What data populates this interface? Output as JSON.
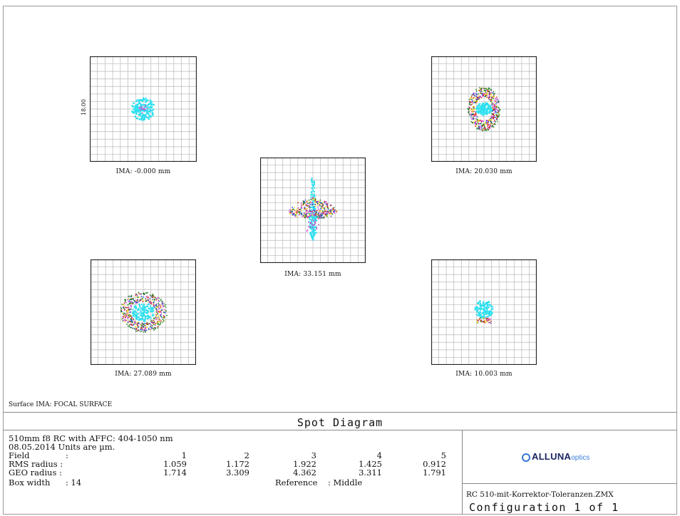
{
  "panels": [
    {
      "ima": "IMA: -0.000 mm",
      "scale_label": "18.00",
      "spot": "center"
    },
    {
      "ima": "IMA: 20.030 mm",
      "spot": "ring"
    },
    {
      "ima": "IMA: 33.151 mm",
      "spot": "arrow"
    },
    {
      "ima": "IMA: 27.089 mm",
      "spot": "ring-large"
    },
    {
      "ima": "IMA: 10.003 mm",
      "spot": "small"
    }
  ],
  "surface_line": "Surface IMA: FOCAL SURFACE",
  "title": "Spot Diagram",
  "info": {
    "line1": "510mm f8 RC with AFFC: 404-1050 nm",
    "line2": "08.05.2014  Units are µm.",
    "field_label": "Field",
    "field_colon": ":",
    "fields": [
      "1",
      "2",
      "3",
      "4",
      "5"
    ],
    "rms_label": "RMS radius :",
    "rms": [
      "1.059",
      "1.172",
      "1.922",
      "1.425",
      "0.912"
    ],
    "geo_label": "GEO radius :",
    "geo": [
      "1.714",
      "3.309",
      "4.362",
      "3.311",
      "1.791"
    ],
    "box_label": "Box width",
    "box_value": ": 14",
    "reference_label": "Reference",
    "reference_value": ": Middle"
  },
  "logo": {
    "bold": "ALLUNA",
    "light": "optics"
  },
  "file_name": "RC 510-mit-Korrektor-Toleranzen.ZMX",
  "config": "Configuration 1 of 1",
  "colors": {
    "grid": "#b8b8b8",
    "spot_cyan": "#2ee0f0",
    "wavelengths": [
      "#2ee0f0",
      "#d02020",
      "#1a7a1a",
      "#e8e020",
      "#d040d0",
      "#3050e0"
    ]
  }
}
